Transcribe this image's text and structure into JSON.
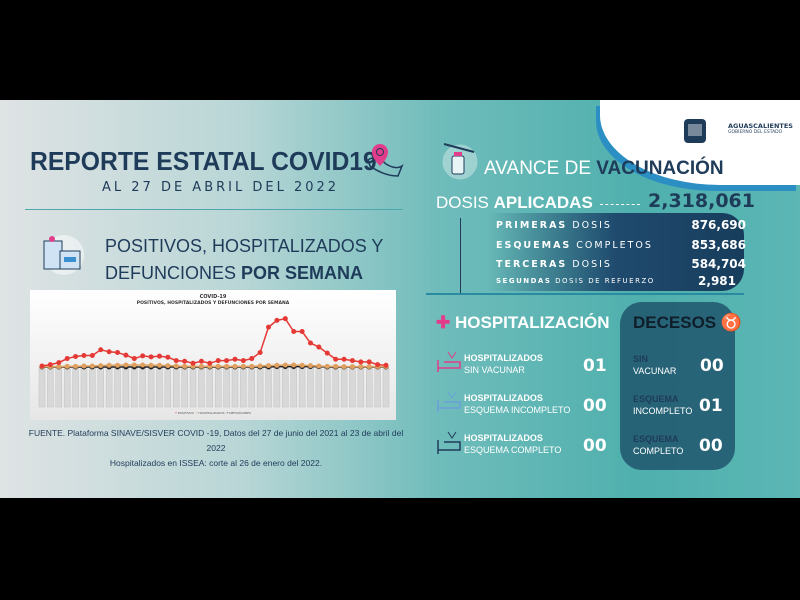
{
  "header": {
    "title": "REPORTE ESTATAL COVID19",
    "subtitle": "AL 27 DE ABRIL DEL 2022"
  },
  "logo": {
    "name": "AGUASCALIENTES",
    "tagline": "GOBIERNO DEL ESTADO"
  },
  "weekly": {
    "title_regular": "POSITIVOS, HOSPITALIZADOS Y DEFUNCIONES ",
    "title_bold": "POR SEMANA",
    "source": "FUENTE. Plataforma SINAVE/SISVER COVID -19, Datos del 27 de junio del 2021 al 23 de abril del 2022",
    "note": "Hospitalizados en ISSEA: corte al 26 de enero del 2022."
  },
  "chart_data": {
    "type": "line",
    "title": "COVID-19",
    "subtitle": "POSITIVOS, HOSPITALIZADOS Y DEFUNCIONES POR SEMANA",
    "legend_placement": "bottom",
    "grid": false,
    "series": [
      {
        "name": "POSITIVOS",
        "color": "#e53935",
        "values": [
          3,
          7,
          13,
          25,
          31,
          34,
          34,
          51,
          45,
          43,
          35,
          25,
          33,
          30,
          32,
          29,
          19,
          17,
          11,
          17,
          11,
          19,
          19,
          23,
          19,
          25,
          43,
          118,
          138,
          143,
          105,
          105,
          71,
          59,
          41,
          23,
          23,
          19,
          15,
          15,
          7,
          5
        ]
      },
      {
        "name": "HOSPITALIZADOS",
        "color": "#e0a060",
        "values": [
          1,
          1,
          1,
          2,
          2,
          3,
          3,
          4,
          5,
          5,
          6,
          6,
          6,
          5,
          5,
          4,
          3,
          2,
          2,
          2,
          2,
          2,
          2,
          2,
          2,
          2,
          3,
          4,
          5,
          6,
          6,
          5,
          4,
          3,
          2,
          2,
          1,
          1,
          1,
          1,
          1,
          1
        ]
      },
      {
        "name": "DEFUNCIONES",
        "color": "#222222",
        "values": [
          0,
          0,
          0,
          0,
          0,
          0,
          0,
          0,
          0,
          0,
          0,
          0,
          0,
          0,
          0,
          0,
          0,
          0,
          0,
          0,
          0,
          0,
          0,
          0,
          0,
          0,
          0,
          0,
          1,
          1,
          1,
          1,
          1,
          1,
          0,
          0,
          0,
          0,
          0,
          0,
          0,
          0
        ]
      }
    ]
  },
  "vaccination": {
    "title_regular": "AVANCE DE ",
    "title_bold": "VACUNACIÓN",
    "doses_regular": "DOSIS ",
    "doses_bold": "APLICADAS",
    "total": "2,318,061",
    "rows": [
      {
        "bold": "PRIMERAS",
        "regular": " DOSIS",
        "value": "876,690"
      },
      {
        "bold": "ESQUEMAS",
        "regular": " COMPLETOS",
        "value": "853,686"
      },
      {
        "bold": "TERCERAS",
        "regular": " DOSIS",
        "value": "584,704"
      },
      {
        "bold": "SEGUNDAS",
        "regular": " DOSIS DE REFUERZO",
        "value": "2,981"
      }
    ]
  },
  "hospitalization": {
    "plus": "✚",
    "title": "HOSPITALIZACIÓN",
    "items": [
      {
        "bold": "HOSPITALIZADOS",
        "regular": "SIN VACUNAR",
        "value": "01"
      },
      {
        "bold": "HOSPITALIZADOS",
        "regular": "ESQUEMA INCOMPLETO",
        "value": "00"
      },
      {
        "bold": "HOSPITALIZADOS",
        "regular": "ESQUEMA COMPLETO",
        "value": "00"
      }
    ]
  },
  "deaths": {
    "title": "DECESOS",
    "items": [
      {
        "bold": "SIN",
        "regular": "VACUNAR",
        "value": "00"
      },
      {
        "bold": "ESQUEMA",
        "regular": "INCOMPLETO",
        "value": "01"
      },
      {
        "bold": "ESQUEMA",
        "regular": "COMPLETO",
        "value": "00"
      }
    ]
  },
  "colors": {
    "navy": "#1f3b5a",
    "teal": "#4fb0ad",
    "pink": "#e23d8a"
  }
}
